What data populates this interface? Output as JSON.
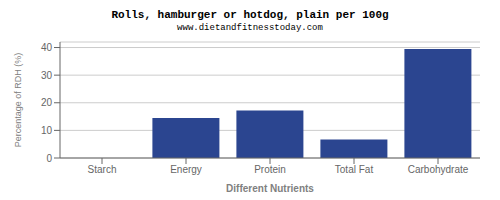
{
  "chart_data": {
    "type": "bar",
    "title": "Rolls, hamburger or hotdog, plain per 100g",
    "subtitle": "www.dietandfitnesstoday.com",
    "xlabel": "Different Nutrients",
    "ylabel": "Percentage of RDH (%)",
    "categories": [
      "Starch",
      "Energy",
      "Protein",
      "Total Fat",
      "Carbohydrate"
    ],
    "values": [
      0,
      14.5,
      17.2,
      6.7,
      39.5
    ],
    "color": "#2b4590",
    "ylim": [
      0,
      42
    ],
    "yticks": [
      0,
      10,
      20,
      30,
      40
    ],
    "grid": true
  }
}
